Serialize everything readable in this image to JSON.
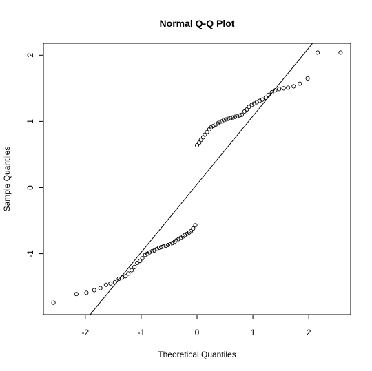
{
  "chart_data": {
    "type": "scatter",
    "title": "Normal Q-Q Plot",
    "xlabel": "Theoretical Quantiles",
    "ylabel": "Sample Quantiles",
    "xlim": [
      -2.75,
      2.75
    ],
    "ylim": [
      -1.92,
      2.18
    ],
    "x_ticks": [
      -2,
      -1,
      0,
      1,
      2
    ],
    "x_tick_labels": [
      "-2",
      "-1",
      "0",
      "1",
      "2"
    ],
    "y_ticks": [
      -1,
      0,
      1,
      2
    ],
    "y_tick_labels": [
      "-1",
      "0",
      "1",
      "2"
    ],
    "grid": false,
    "marker": "open-circle",
    "reference_line": {
      "intercept": 0.05,
      "slope": 1.03
    },
    "series": [
      {
        "x": [
          -2.57,
          -2.16,
          -1.98,
          -1.84,
          -1.73,
          -1.63,
          -1.55,
          -1.47,
          -1.4,
          -1.34,
          -1.28,
          -1.23,
          -1.17,
          -1.12,
          -1.07,
          -1.02,
          -0.98,
          -0.93,
          -0.89,
          -0.85,
          -0.8,
          -0.76,
          -0.72,
          -0.68,
          -0.64,
          -0.6,
          -0.56,
          -0.52,
          -0.48,
          -0.44,
          -0.4,
          -0.37,
          -0.33,
          -0.29,
          -0.25,
          -0.22,
          -0.18,
          -0.14,
          -0.11,
          -0.07,
          -0.03,
          0.0,
          0.04,
          0.07,
          0.11,
          0.14,
          0.18,
          0.22,
          0.25,
          0.29,
          0.33,
          0.37,
          0.4,
          0.44,
          0.48,
          0.52,
          0.56,
          0.6,
          0.64,
          0.68,
          0.72,
          0.76,
          0.8,
          0.85,
          0.89,
          0.93,
          0.98,
          1.02,
          1.07,
          1.12,
          1.17,
          1.23,
          1.28,
          1.34,
          1.4,
          1.47,
          1.55,
          1.63,
          1.73,
          1.84,
          1.98,
          2.16,
          2.57
        ],
        "y": [
          -1.74,
          -1.61,
          -1.59,
          -1.55,
          -1.52,
          -1.47,
          -1.45,
          -1.43,
          -1.38,
          -1.36,
          -1.34,
          -1.3,
          -1.25,
          -1.2,
          -1.14,
          -1.11,
          -1.07,
          -1.02,
          -1.0,
          -0.98,
          -0.96,
          -0.95,
          -0.93,
          -0.91,
          -0.9,
          -0.89,
          -0.88,
          -0.87,
          -0.86,
          -0.84,
          -0.82,
          -0.8,
          -0.78,
          -0.76,
          -0.74,
          -0.72,
          -0.7,
          -0.68,
          -0.66,
          -0.62,
          -0.57,
          0.64,
          0.68,
          0.72,
          0.76,
          0.8,
          0.84,
          0.88,
          0.91,
          0.93,
          0.95,
          0.97,
          0.99,
          1.0,
          1.02,
          1.03,
          1.04,
          1.05,
          1.06,
          1.07,
          1.08,
          1.09,
          1.1,
          1.15,
          1.18,
          1.22,
          1.25,
          1.27,
          1.29,
          1.31,
          1.33,
          1.36,
          1.4,
          1.44,
          1.47,
          1.49,
          1.5,
          1.51,
          1.53,
          1.57,
          1.65,
          2.04,
          2.04
        ]
      }
    ]
  }
}
